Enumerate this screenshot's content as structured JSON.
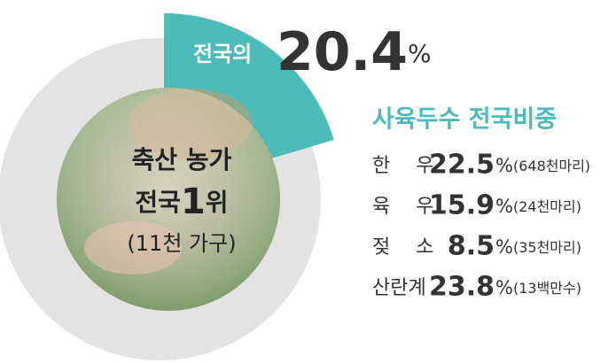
{
  "chart_data": {
    "type": "donut",
    "values": [
      20.4
    ],
    "unit": "%",
    "annotation": "전국의",
    "color": "#4bbcb8",
    "track_color": "#e3e3e3",
    "center_lines": [
      "축산 농가",
      "전국",
      "1",
      "위",
      "(11천 가구)"
    ],
    "subtitle": "사육두수 전국비중",
    "rows": [
      {
        "name": "한 우",
        "value": 22.5,
        "unit": "%",
        "note": "(648천마리)"
      },
      {
        "name": "육 우",
        "value": 15.9,
        "unit": "%",
        "note": "(24천마리)"
      },
      {
        "name": "젖 소",
        "value": 8.5,
        "unit": "%",
        "note": "(35천마리)"
      },
      {
        "name": "산란계",
        "value": 23.8,
        "unit": "%",
        "note": "(13백만수)"
      }
    ]
  }
}
